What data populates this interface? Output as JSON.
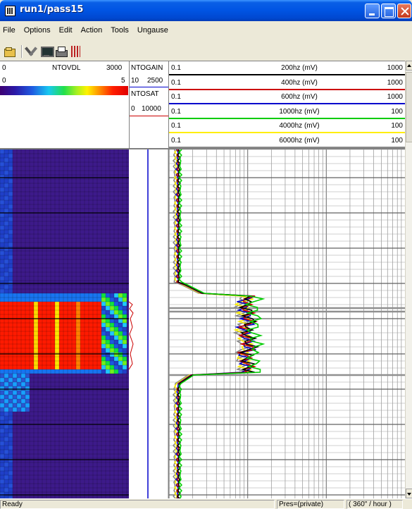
{
  "window": {
    "title": "run1/pass15"
  },
  "menu": [
    "File",
    "Options",
    "Edit",
    "Action",
    "Tools",
    "Ungause"
  ],
  "toolbar": [
    "open-icon",
    "tool-icon",
    "monitor-icon",
    "print-icon",
    "depth-icon"
  ],
  "header": {
    "ntovdl": {
      "left": "0",
      "name": "NTOVDL",
      "right": "3000",
      "left2": "0",
      "right2": "5"
    },
    "ntogain": {
      "name": "NTOGAIN",
      "low": "10",
      "high": "2500"
    },
    "ntosat": {
      "name": "NTOSAT",
      "low": "0",
      "high": "10000"
    },
    "curves": [
      {
        "left": "0.1",
        "name": "200hz (mV)",
        "right": "1000",
        "color": "#000000"
      },
      {
        "left": "0.1",
        "name": "400hz (mV)",
        "right": "1000",
        "color": "#cc0000"
      },
      {
        "left": "0.1",
        "name": "600hz (mV)",
        "right": "1000",
        "color": "#0000cc"
      },
      {
        "left": "0.1",
        "name": "1000hz (mV)",
        "right": "100",
        "color": "#00cc00"
      },
      {
        "left": "0.1",
        "name": "4000hz (mV)",
        "right": "100",
        "color": "#ffee00"
      },
      {
        "left": "0.1",
        "name": "6000hz (mV)",
        "right": "100",
        "color": "#888888"
      }
    ]
  },
  "status": {
    "ready": "Ready",
    "pres": "Pres=(private)",
    "speed": "( 360\" / hour )"
  }
}
